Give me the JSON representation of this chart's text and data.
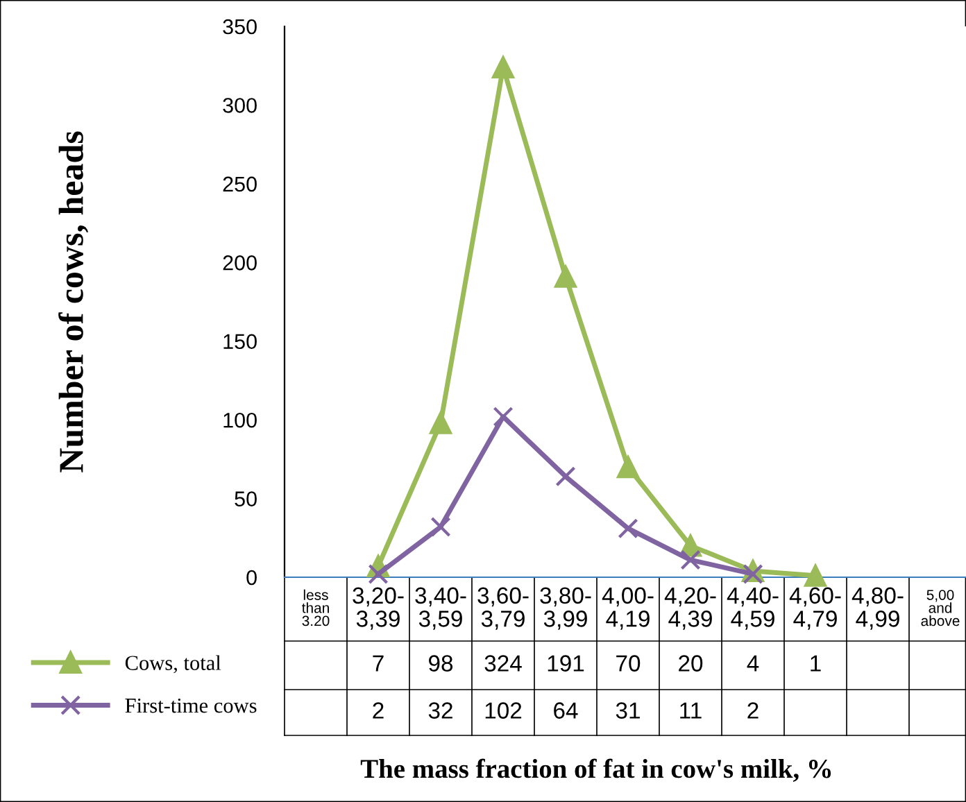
{
  "chart_data": {
    "type": "line",
    "xlabel": "The mass fraction of fat in cow's milk, %",
    "ylabel": "Number of cows, heads",
    "categories": [
      "less\nthan\n3.20",
      "3,20-\n3,39",
      "3,40-\n3,59",
      "3,60-\n3,79",
      "3,80-\n3,99",
      "4,00-\n4,19",
      "4,20-\n4,39",
      "4,40-\n4,59",
      "4,60-\n4,79",
      "4,80-\n4,99",
      "5,00\nand\nabove"
    ],
    "series": [
      {
        "name": "Cows, total",
        "color": "#9bbb59",
        "marker": "triangle",
        "values": [
          null,
          7,
          98,
          324,
          191,
          70,
          20,
          4,
          1,
          null,
          null
        ]
      },
      {
        "name": "First-time cows",
        "color": "#8064a2",
        "marker": "cross",
        "values": [
          null,
          2,
          32,
          102,
          64,
          31,
          11,
          2,
          null,
          null,
          null
        ]
      }
    ],
    "ylim": [
      0,
      350
    ],
    "yticks": [
      0,
      50,
      100,
      150,
      200,
      250,
      300,
      350
    ],
    "data_labels": true,
    "legend": "bottom left",
    "grid": false,
    "line_style": "solid"
  }
}
